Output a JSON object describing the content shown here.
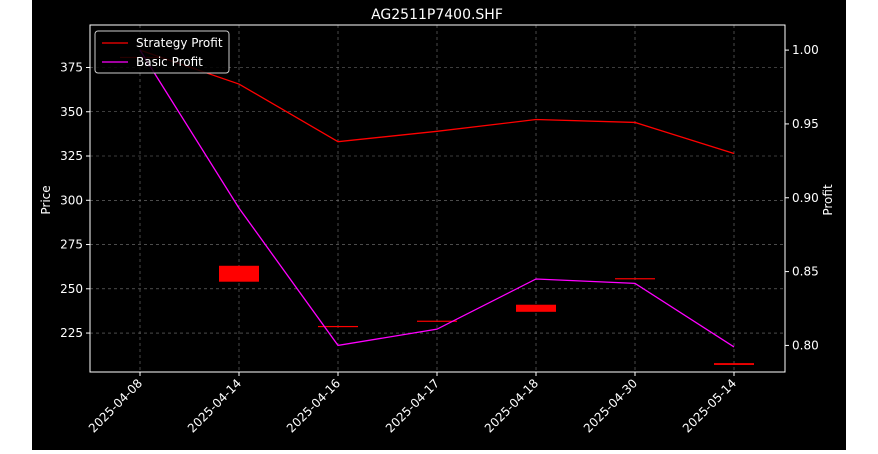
{
  "chart_data": {
    "type": "line",
    "title": "AG2511P7400.SHF",
    "ylabel_left": "Price",
    "ylabel_right": "Profit",
    "categories": [
      "2025-04-08",
      "2025-04-14",
      "2025-04-16",
      "2025-04-17",
      "2025-04-18",
      "2025-04-30",
      "2025-05-14"
    ],
    "ylim_left": [
      203,
      399
    ],
    "yticks_left": [
      225,
      250,
      275,
      300,
      325,
      350,
      375
    ],
    "ylim_right": [
      0.782,
      1.017
    ],
    "yticks_right": [
      0.8,
      0.85,
      0.9,
      0.95,
      1.0
    ],
    "grid": true,
    "legend_position": "top-left",
    "candles": [
      {
        "date": "2025-04-08",
        "open": 381,
        "close": 381,
        "color": "#ff0000"
      },
      {
        "date": "2025-04-14",
        "open": 263,
        "close": 254,
        "color": "#ff0000"
      },
      {
        "date": "2025-04-16",
        "open": 229,
        "close": 229,
        "color": "#ff0000"
      },
      {
        "date": "2025-04-17",
        "open": 232,
        "close": 232,
        "color": "#ff0000"
      },
      {
        "date": "2025-04-18",
        "open": 241,
        "close": 237,
        "color": "#ff0000"
      },
      {
        "date": "2025-04-30",
        "open": 256,
        "close": 256,
        "color": "#ff0000"
      },
      {
        "date": "2025-05-14",
        "open": 208,
        "close": 207,
        "color": "#ff0000"
      }
    ],
    "series": [
      {
        "name": "Strategy Profit",
        "color": "#ff0000",
        "axis": "right",
        "values": [
          1.0,
          0.977,
          0.938,
          0.945,
          0.953,
          0.951,
          0.93
        ]
      },
      {
        "name": "Basic Profit",
        "color": "#ff00ff",
        "axis": "right",
        "values": [
          1.0,
          0.893,
          0.8,
          0.811,
          0.845,
          0.842,
          0.799
        ]
      }
    ]
  }
}
